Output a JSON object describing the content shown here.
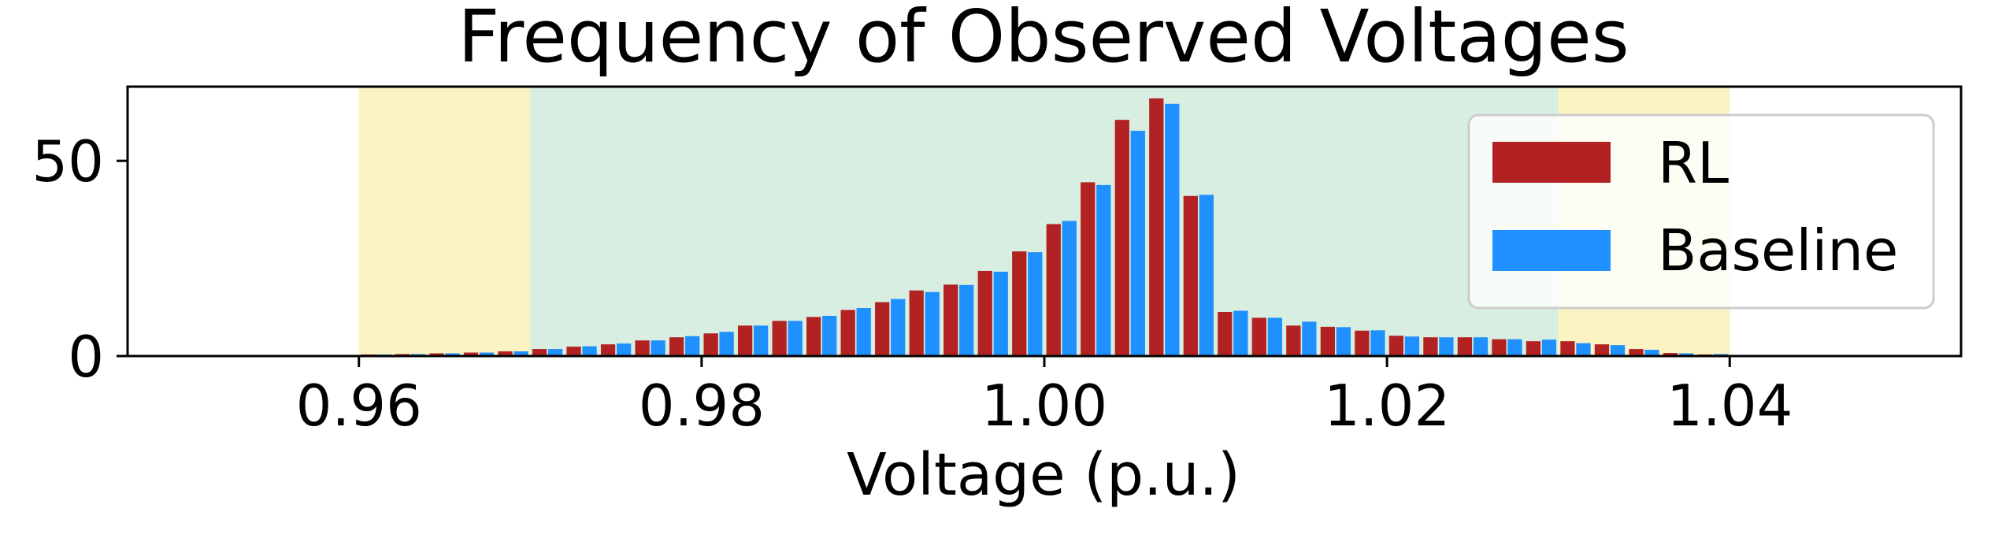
{
  "chart_data": {
    "type": "bar",
    "title": "Frequency of Observed Voltages",
    "xlabel": "Voltage (p.u.)",
    "ylabel": "",
    "xlim": [
      0.9465,
      1.0535
    ],
    "ylim": [
      0,
      69
    ],
    "xticks": [
      "0.96",
      "0.98",
      "1.00",
      "1.02",
      "1.04"
    ],
    "xtick_values": [
      0.96,
      0.98,
      1.0,
      1.02,
      1.04
    ],
    "yticks": [
      "0",
      "50"
    ],
    "ytick_values": [
      0,
      50
    ],
    "grid": false,
    "legend_position": "top-right",
    "bands": [
      {
        "range": [
          0.96,
          0.97
        ],
        "color": "#fbf3c1"
      },
      {
        "range": [
          0.97,
          1.03
        ],
        "color": "#d7eee0"
      },
      {
        "range": [
          1.03,
          1.04
        ],
        "color": "#fbf3c1"
      }
    ],
    "x": [
      0.957,
      0.959,
      0.961,
      0.963,
      0.965,
      0.967,
      0.969,
      0.971,
      0.973,
      0.975,
      0.977,
      0.979,
      0.981,
      0.983,
      0.985,
      0.987,
      0.989,
      0.991,
      0.993,
      0.995,
      0.997,
      0.999,
      1.001,
      1.003,
      1.005,
      1.007,
      1.009,
      1.011,
      1.013,
      1.015,
      1.017,
      1.019,
      1.021,
      1.023,
      1.025,
      1.027,
      1.029,
      1.031,
      1.033,
      1.035,
      1.037,
      1.039,
      1.041,
      1.043,
      1.045
    ],
    "series": [
      {
        "name": "RL",
        "color": "#b22222",
        "values": [
          0.3,
          0.3,
          0.4,
          0.5,
          0.7,
          0.9,
          1.2,
          1.8,
          2.4,
          3.0,
          4.0,
          4.8,
          5.8,
          7.8,
          9.0,
          10.0,
          11.8,
          13.8,
          16.8,
          18.3,
          21.8,
          26.8,
          33.8,
          44.5,
          60.5,
          66.0,
          41.0,
          11.3,
          9.8,
          7.8,
          7.5,
          6.5,
          5.2,
          4.8,
          4.8,
          4.3,
          3.8,
          3.8,
          3.0,
          1.8,
          0.8,
          0.4,
          0.2,
          0.2,
          0.1
        ]
      },
      {
        "name": "Baseline",
        "color": "#1e90ff",
        "values": [
          0.3,
          0.3,
          0.4,
          0.5,
          0.7,
          0.9,
          1.2,
          1.8,
          2.5,
          3.2,
          4.0,
          5.1,
          6.2,
          7.8,
          9.0,
          10.3,
          12.3,
          14.6,
          16.4,
          18.2,
          21.6,
          26.6,
          34.6,
          43.8,
          57.7,
          64.6,
          41.3,
          11.6,
          9.8,
          8.8,
          7.4,
          6.6,
          5.0,
          4.8,
          4.8,
          4.3,
          4.2,
          3.3,
          2.8,
          1.6,
          0.7,
          0.5,
          0.3,
          0.2,
          0.1
        ]
      }
    ]
  }
}
